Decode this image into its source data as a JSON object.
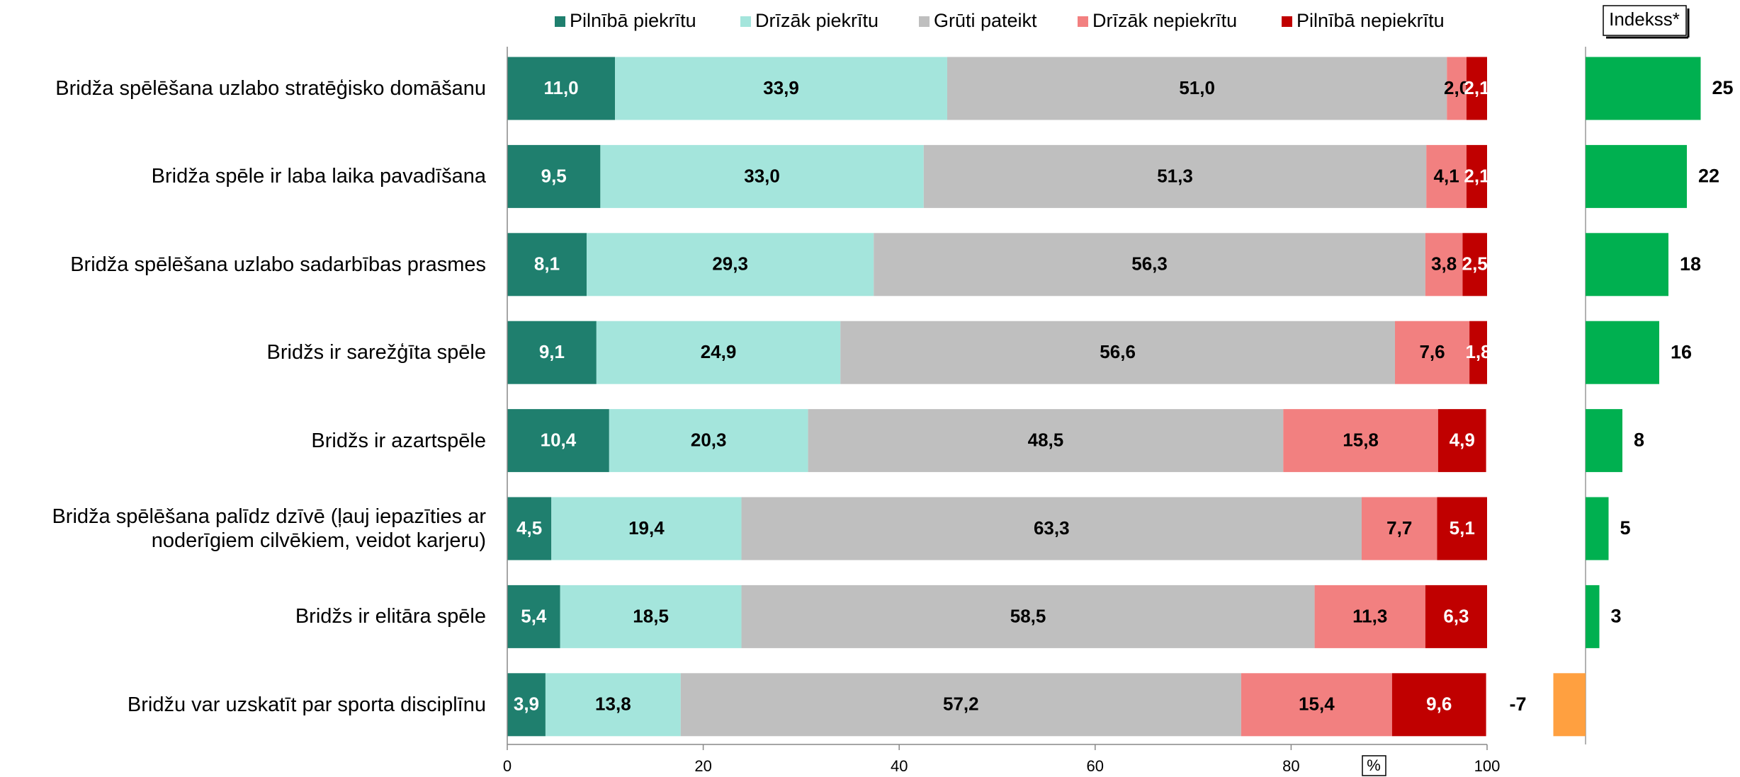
{
  "chart_data": [
    {
      "type": "stacked_barh",
      "categories": [
        "Bridža spēlēšana uzlabo stratēģisko domāšanu",
        "Bridža spēle ir laba laika pavadīšana",
        "Bridža spēlēšana uzlabo sadarbības prasmes",
        "Bridžs ir sarežģīta spēle",
        "Bridžs ir azartspēle",
        "Bridža spēlēšana palīdz dzīvē (ļauj iepazīties ar noderīgiem cilvēkiem, veidot karjeru)",
        "Bridžs ir elitāra spēle",
        "Bridžu var uzskatīt par sporta disciplīnu"
      ],
      "series": [
        {
          "name": "Pilnībā piekrītu",
          "color": "#1f7f6e",
          "values": [
            11.0,
            9.5,
            8.1,
            9.1,
            10.4,
            4.5,
            5.4,
            3.9
          ],
          "value_labels": [
            "11,0",
            "9,5",
            "8,1",
            "9,1",
            "10,4",
            "4,5",
            "5,4",
            "3,9"
          ]
        },
        {
          "name": "Drīzāk piekrītu",
          "color": "#a4e5dc",
          "values": [
            33.9,
            33.0,
            29.3,
            24.9,
            20.3,
            19.4,
            18.5,
            13.8
          ],
          "value_labels": [
            "33,9",
            "33,0",
            "29,3",
            "24,9",
            "20,3",
            "19,4",
            "18,5",
            "13,8"
          ]
        },
        {
          "name": "Grūti pateikt",
          "color": "#bfbfbf",
          "values": [
            51.0,
            51.3,
            56.3,
            56.6,
            48.5,
            63.3,
            58.5,
            57.2
          ],
          "value_labels": [
            "51,0",
            "51,3",
            "56,3",
            "56,6",
            "48,5",
            "63,3",
            "58,5",
            "57,2"
          ]
        },
        {
          "name": "Drīzāk nepiekrītu",
          "color": "#f28080",
          "values": [
            2.0,
            4.1,
            3.8,
            7.6,
            15.8,
            7.7,
            11.3,
            15.4
          ],
          "value_labels": [
            "2,0",
            "4,1",
            "3,8",
            "7,6",
            "15,8",
            "7,7",
            "11,3",
            "15,4"
          ]
        },
        {
          "name": "Pilnībā nepiekrītu",
          "color": "#c00000",
          "values": [
            2.1,
            2.1,
            2.5,
            1.8,
            4.9,
            5.1,
            6.3,
            9.6
          ],
          "value_labels": [
            "2,1",
            "2,1",
            "2,5",
            "1,8",
            "4,9",
            "5,1",
            "6,3",
            "9,6"
          ]
        }
      ],
      "xlim": [
        0,
        100
      ],
      "xticks": [
        0,
        20,
        40,
        60,
        80,
        100
      ],
      "xlabel": "%",
      "legend": "top"
    },
    {
      "type": "barh",
      "title": "Indekss*",
      "values": [
        25,
        22,
        18,
        16,
        8,
        5,
        3,
        -7
      ],
      "color": "#00b050",
      "negative_color": "#ffa040"
    }
  ]
}
